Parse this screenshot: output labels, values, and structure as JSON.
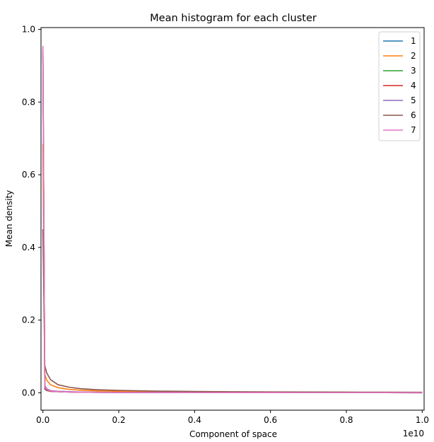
{
  "chart_data": {
    "type": "line",
    "title": "Mean histogram for each cluster",
    "xlabel": "Component of space",
    "ylabel": "Mean density",
    "x_offset_label": "1e10",
    "xlim": [
      -0.005,
      1.005
    ],
    "ylim": [
      -0.048,
      1.005
    ],
    "x_unit_multiplier": 10000000000.0,
    "xticks": [
      0.0,
      0.2,
      0.4,
      0.6,
      0.8,
      1.0
    ],
    "xtick_labels": [
      "0.0",
      "0.2",
      "0.4",
      "0.6",
      "0.8",
      "1.0"
    ],
    "yticks": [
      0.0,
      0.2,
      0.4,
      0.6,
      0.8,
      1.0
    ],
    "ytick_labels": [
      "0.0",
      "0.2",
      "0.4",
      "0.6",
      "0.8",
      "1.0"
    ],
    "grid": false,
    "legend_position": "top-right",
    "x": [
      0.0,
      0.005,
      0.01,
      0.02,
      0.04,
      0.07,
      0.1,
      0.15,
      0.2,
      0.3,
      0.4,
      0.5,
      0.6,
      0.7,
      0.8,
      0.9,
      1.0
    ],
    "series": [
      {
        "name": "1",
        "color": "#1f77b4",
        "values": [
          0.93,
          0.01,
          0.006,
          0.004,
          0.003,
          0.002,
          0.0015,
          0.001,
          0.0008,
          0.0005,
          0.0004,
          0.0003,
          0.0003,
          0.0002,
          0.0002,
          0.0002,
          0.0001
        ]
      },
      {
        "name": "2",
        "color": "#ff7f0e",
        "values": [
          0.685,
          0.05,
          0.035,
          0.022,
          0.014,
          0.009,
          0.007,
          0.005,
          0.004,
          0.0028,
          0.0022,
          0.0018,
          0.0015,
          0.0013,
          0.0011,
          0.001,
          0.0009
        ]
      },
      {
        "name": "3",
        "color": "#2ca02c",
        "values": [
          0.94,
          0.012,
          0.007,
          0.004,
          0.003,
          0.002,
          0.0015,
          0.001,
          0.0008,
          0.0005,
          0.0004,
          0.0003,
          0.0003,
          0.0002,
          0.0002,
          0.0002,
          0.0001
        ]
      },
      {
        "name": "4",
        "color": "#d62728",
        "values": [
          0.945,
          0.012,
          0.007,
          0.004,
          0.003,
          0.002,
          0.0015,
          0.001,
          0.0008,
          0.0005,
          0.0004,
          0.0003,
          0.0003,
          0.0002,
          0.0002,
          0.0002,
          0.0001
        ]
      },
      {
        "name": "5",
        "color": "#9467bd",
        "values": [
          0.95,
          0.02,
          0.011,
          0.006,
          0.004,
          0.003,
          0.002,
          0.0015,
          0.001,
          0.0007,
          0.0005,
          0.0004,
          0.0003,
          0.0003,
          0.0002,
          0.0002,
          0.0002
        ]
      },
      {
        "name": "6",
        "color": "#8c564b",
        "values": [
          0.45,
          0.075,
          0.055,
          0.036,
          0.022,
          0.015,
          0.011,
          0.008,
          0.0065,
          0.0045,
          0.0035,
          0.0028,
          0.0023,
          0.002,
          0.0017,
          0.0015,
          0.0013
        ]
      },
      {
        "name": "7",
        "color": "#e377c2",
        "values": [
          0.955,
          0.015,
          0.009,
          0.005,
          0.003,
          0.002,
          0.0015,
          0.001,
          0.0008,
          0.0005,
          0.0004,
          0.0003,
          0.0003,
          0.0002,
          0.0002,
          0.0002,
          0.0001
        ]
      }
    ]
  }
}
